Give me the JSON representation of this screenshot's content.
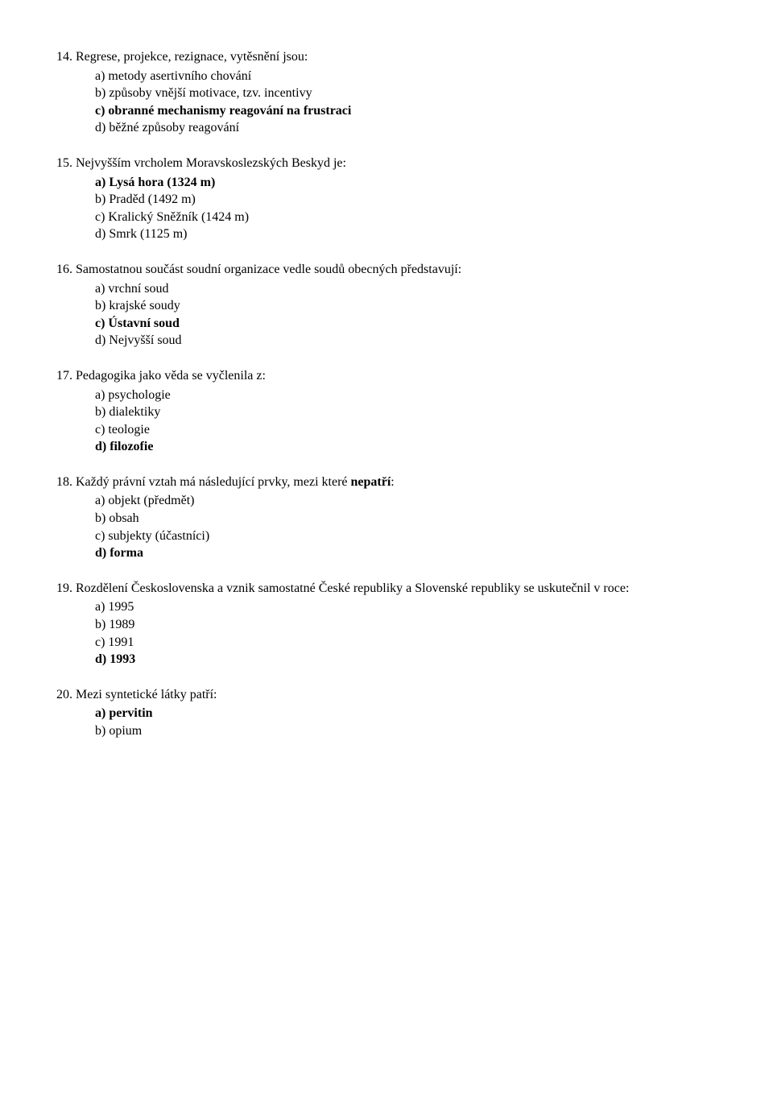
{
  "questions": [
    {
      "number": "14.",
      "text": "Regrese, projekce, rezignace, vytěsnění jsou:",
      "options": [
        {
          "label": "a) metody asertivního chování",
          "bold": false
        },
        {
          "label": "b) způsoby vnější motivace, tzv. incentivy",
          "bold": false
        },
        {
          "label": "c) obranné mechanismy reagování na frustraci",
          "bold": true
        },
        {
          "label": "d) běžné způsoby reagování",
          "bold": false
        }
      ]
    },
    {
      "number": "15.",
      "text": "Nejvyšším vrcholem Moravskoslezských Beskyd je:",
      "options": [
        {
          "label": "a) Lysá hora (1324 m)",
          "bold": true
        },
        {
          "label": "b) Praděd (1492 m)",
          "bold": false
        },
        {
          "label": "c) Kralický Sněžník (1424 m)",
          "bold": false
        },
        {
          "label": "d) Smrk (1125 m)",
          "bold": false
        }
      ]
    },
    {
      "number": "16.",
      "text": "Samostatnou součást soudní organizace vedle soudů obecných představují:",
      "options": [
        {
          "label": "a) vrchní soud",
          "bold": false
        },
        {
          "label": "b) krajské soudy",
          "bold": false
        },
        {
          "label": "c) Ústavní soud",
          "bold": true
        },
        {
          "label": "d) Nejvyšší soud",
          "bold": false
        }
      ]
    },
    {
      "number": "17.",
      "text": "Pedagogika jako věda se vyčlenila z:",
      "options": [
        {
          "label": "a) psychologie",
          "bold": false
        },
        {
          "label": "b) dialektiky",
          "bold": false
        },
        {
          "label": "c) teologie",
          "bold": false
        },
        {
          "label": "d) filozofie",
          "bold": true
        }
      ]
    },
    {
      "number": "18.",
      "text_pre": "Každý právní vztah má následující prvky, mezi které ",
      "text_bold": "nepatří",
      "text_post": ":",
      "options": [
        {
          "label": "a) objekt (předmět)",
          "bold": false
        },
        {
          "label": "b) obsah",
          "bold": false
        },
        {
          "label": "c) subjekty (účastníci)",
          "bold": false
        },
        {
          "label": "d) forma",
          "bold": true
        }
      ]
    },
    {
      "number": "19.",
      "text": "Rozdělení Československa a vznik samostatné České republiky a Slovenské republiky se uskutečnil v roce:",
      "justified": true,
      "options": [
        {
          "label": "a) 1995",
          "bold": false
        },
        {
          "label": "b) 1989",
          "bold": false
        },
        {
          "label": "c) 1991",
          "bold": false
        },
        {
          "label": "d) 1993",
          "bold": true
        }
      ]
    },
    {
      "number": "20.",
      "text": "Mezi syntetické látky patří:",
      "options": [
        {
          "label": "a) pervitin",
          "bold": true
        },
        {
          "label": "b) opium",
          "bold": false
        }
      ]
    }
  ]
}
